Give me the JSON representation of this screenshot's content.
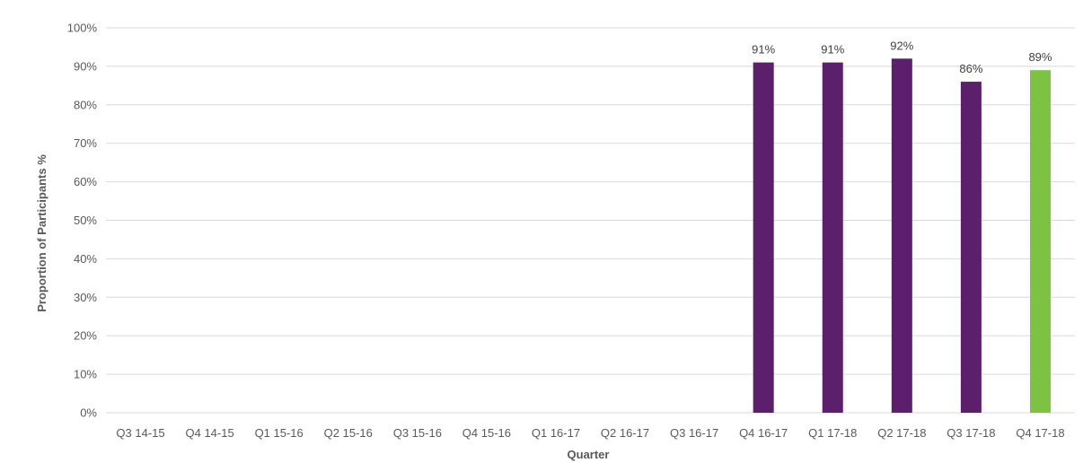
{
  "chart_data": {
    "type": "bar",
    "title": "",
    "xlabel": "Quarter",
    "ylabel": "Proportion of Participants %",
    "ylim": [
      0,
      100
    ],
    "yticks": [
      "0%",
      "10%",
      "20%",
      "30%",
      "40%",
      "50%",
      "60%",
      "70%",
      "80%",
      "90%",
      "100%"
    ],
    "grid": true,
    "legend": "none",
    "categories": [
      "Q3 14-15",
      "Q4 14-15",
      "Q1 15-16",
      "Q2 15-16",
      "Q3 15-16",
      "Q4 15-16",
      "Q1 16-17",
      "Q2 16-17",
      "Q3 16-17",
      "Q4 16-17",
      "Q1 17-18",
      "Q2 17-18",
      "Q3 17-18",
      "Q4 17-18"
    ],
    "values": [
      null,
      null,
      null,
      null,
      null,
      null,
      null,
      null,
      null,
      91,
      91,
      92,
      86,
      89
    ],
    "data_labels": [
      "",
      "",
      "",
      "",
      "",
      "",
      "",
      "",
      "",
      "91%",
      "91%",
      "92%",
      "86%",
      "89%"
    ],
    "bar_colors": [
      "#5c1f6b",
      "#5c1f6b",
      "#5c1f6b",
      "#5c1f6b",
      "#5c1f6b",
      "#5c1f6b",
      "#5c1f6b",
      "#5c1f6b",
      "#5c1f6b",
      "#5c1f6b",
      "#5c1f6b",
      "#5c1f6b",
      "#5c1f6b",
      "#7dc242"
    ]
  }
}
